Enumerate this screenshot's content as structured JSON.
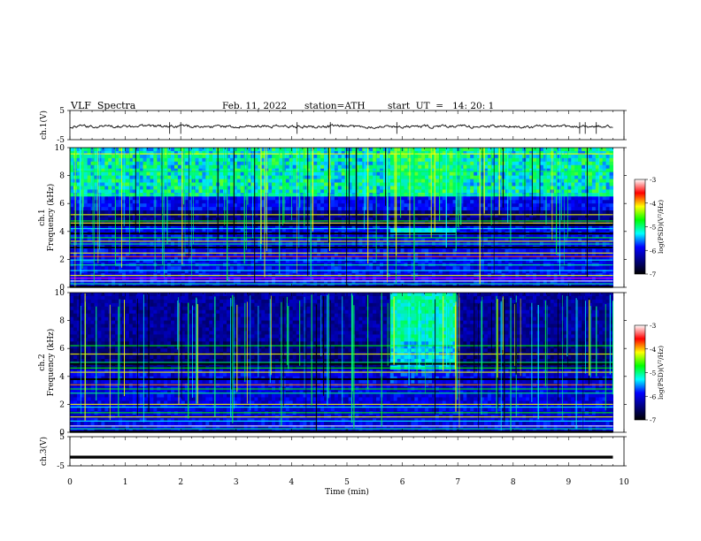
{
  "header": {
    "title": "VLF  Spectra",
    "date": "Feb. 11, 2022",
    "station": "station=ATH",
    "start": "start  UT  =   14: 20: 1"
  },
  "colorbar": {
    "label": "log(PSD)(V²/Hz)",
    "ticks": [
      "-3",
      "-4",
      "-5",
      "-6",
      "-7"
    ],
    "colors": [
      "#ffffff",
      "#ff0000",
      "#ffff00",
      "#00ff00",
      "#00ffff",
      "#0000ff",
      "#000080",
      "#000000"
    ]
  },
  "chart_data": [
    {
      "type": "line",
      "name": "ch1-waveform",
      "ylabel": "ch.1(V)",
      "ylim": [
        -5,
        5
      ],
      "yticks": [
        "5",
        "-5"
      ],
      "xlim": [
        0,
        10
      ],
      "approx_level_v": -0.5,
      "spike_times_min": [
        1.8,
        2.0,
        4.1,
        4.7,
        5.9,
        9.2,
        9.3,
        9.5
      ]
    },
    {
      "type": "heatmap",
      "name": "ch1-spectrogram",
      "ylabel": "ch.1\nFrequency (kHz)",
      "ylim": [
        0,
        10
      ],
      "yticks": [
        "10",
        "8",
        "6",
        "4",
        "2",
        "0"
      ],
      "xlim": [
        0,
        9.8
      ],
      "intense_band_khz": [
        6.6,
        10
      ],
      "event_window_min": [
        5.8,
        7.0
      ],
      "event_band_khz": [
        3.7,
        4.2
      ]
    },
    {
      "type": "heatmap",
      "name": "ch2-spectrogram",
      "ylabel": "ch.2\nFrequency (kHz)",
      "ylim": [
        0,
        10
      ],
      "yticks": [
        "10",
        "8",
        "6",
        "4",
        "2",
        "0"
      ],
      "xlim": [
        0,
        9.8
      ],
      "event_window_min": [
        5.8,
        7.0
      ],
      "event_band_khz": [
        3.5,
        10
      ]
    },
    {
      "type": "line",
      "name": "ch3-waveform",
      "ylabel": "ch.3(V)",
      "ylim": [
        -5,
        5
      ],
      "yticks": [
        "5",
        "-5"
      ],
      "xlim": [
        0,
        10
      ],
      "approx_level_v": -2.0,
      "xlabel": "Time  (min)",
      "xticks": [
        "0",
        "1",
        "2",
        "3",
        "4",
        "5",
        "6",
        "7",
        "8",
        "9",
        "10"
      ]
    }
  ]
}
